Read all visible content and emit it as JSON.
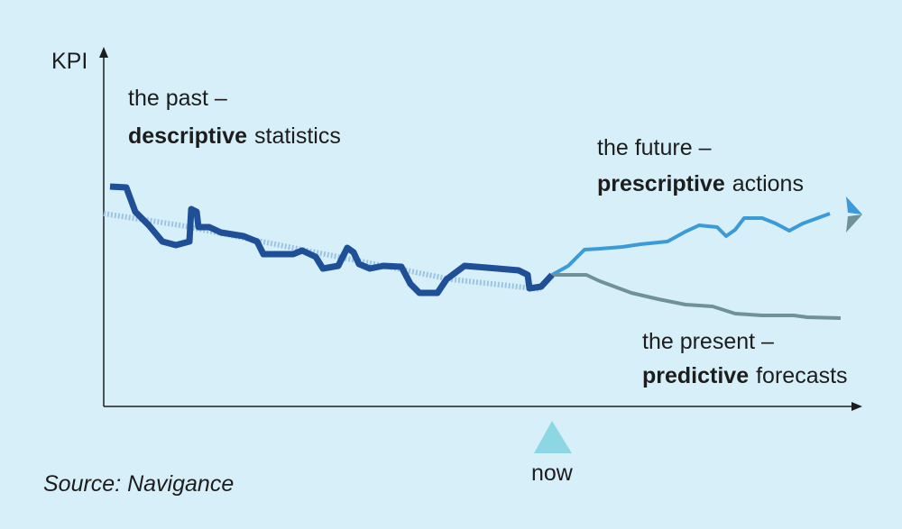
{
  "axis": {
    "y_label": "KPI",
    "marker": "now"
  },
  "annotations": [
    {
      "line1": "the past –",
      "bold": "descriptive",
      "rest": "statistics"
    },
    {
      "line1": "the future –",
      "bold": "prescriptive",
      "rest": "actions"
    },
    {
      "line1": "the present –",
      "bold": "predictive",
      "rest": "forecasts"
    }
  ],
  "source": "Source: Navigance"
}
